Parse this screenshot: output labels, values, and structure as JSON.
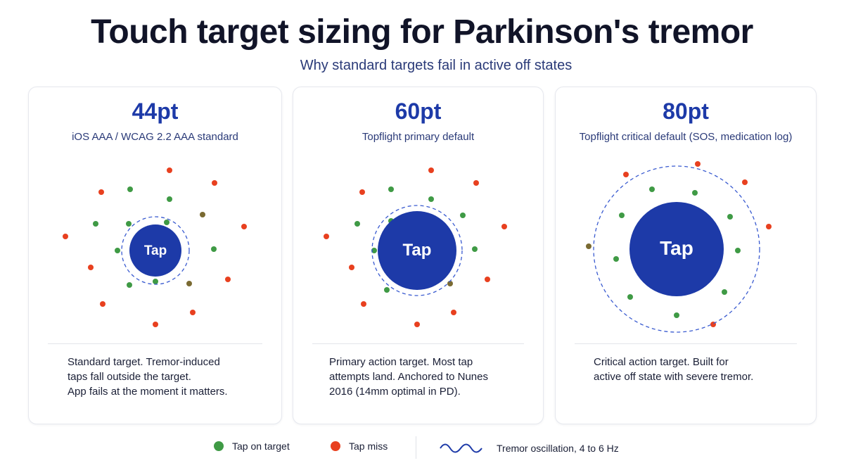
{
  "title": "Touch target sizing for Parkinson's tremor",
  "subtitle": "Why standard targets fail in active off states",
  "target_label": "Tap",
  "colors": {
    "hit": "#3f9a45",
    "miss": "#e8401f",
    "target": "#1d3aa8",
    "ring": "#3a5bd0"
  },
  "cards": [
    {
      "size": "44pt",
      "label": "iOS AAA / WCAG 2.2 AAA standard",
      "description": "Standard target. Tremor-induced\ntaps fall outside the target.\nApp fails at the moment it matters."
    },
    {
      "size": "60pt",
      "label": "Topflight primary default",
      "description": "Primary action target. Most tap\nattempts land. Anchored to Nunes\n2016 (14mm optimal in PD)."
    },
    {
      "size": "80pt",
      "label": "Topflight critical default (SOS, medication log)",
      "description": "Critical action target. Built for\nactive off state with severe tremor."
    }
  ],
  "legend": {
    "hit": "Tap on target",
    "miss": "Tap miss",
    "tremor": "Tremor oscillation, 4 to 6 Hz",
    "icons": {
      "hit": "green-dot-icon",
      "miss": "red-dot-icon",
      "tremor": "sine-wave-icon"
    }
  }
}
